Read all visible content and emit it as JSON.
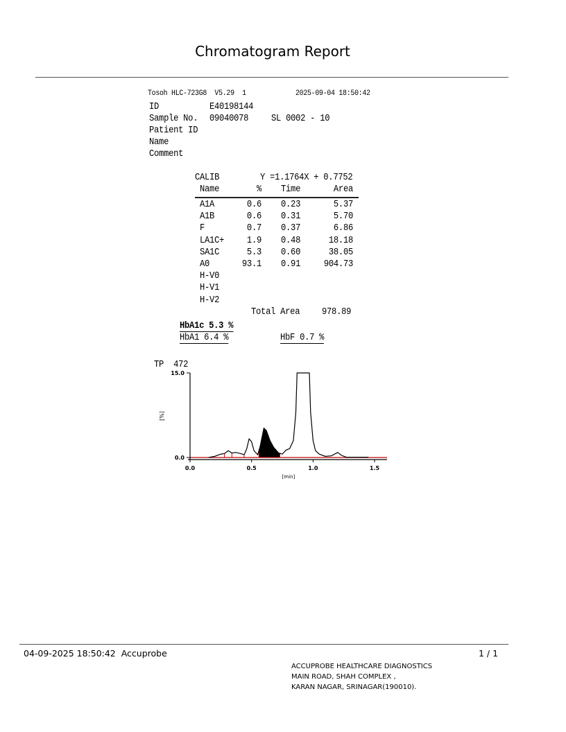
{
  "report": {
    "title": "Chromatogram Report"
  },
  "header": {
    "instrument": "Tosoh HLC-723G8  V5.29  1",
    "datetime": "2025-09-04 18:50:42",
    "id_label": "ID",
    "id_value": "E40198144",
    "sample_label": "Sample No.",
    "sample_value": "09040078",
    "sample_position": "SL 0002 - 10",
    "patient_id_label": "Patient ID",
    "name_label": "Name",
    "comment_label": "Comment"
  },
  "calib": {
    "label": "CALIB",
    "equation": "Y =1.1764X + 0.7752"
  },
  "table": {
    "columns": [
      "Name",
      "%",
      "Time",
      "Area"
    ],
    "rows": [
      [
        "A1A",
        "0.6",
        "0.23",
        "5.37"
      ],
      [
        "A1B",
        "0.6",
        "0.31",
        "5.70"
      ],
      [
        "F",
        "0.7",
        "0.37",
        "6.86"
      ],
      [
        "LA1C+",
        "1.9",
        "0.48",
        "18.18"
      ],
      [
        "SA1C",
        "5.3",
        "0.60",
        "38.05"
      ],
      [
        "A0",
        "93.1",
        "0.91",
        "904.73"
      ],
      [
        "H-V0",
        "",
        "",
        ""
      ],
      [
        "H-V1",
        "",
        "",
        ""
      ],
      [
        "H-V2",
        "",
        "",
        ""
      ]
    ],
    "total_label": "Total Area",
    "total_value": "978.89"
  },
  "results": {
    "hba1c": "HbA1c 5.3 %",
    "hba1": "HbA1 6.4 %",
    "hbf": "HbF 0.7 %"
  },
  "chart_data": {
    "type": "line",
    "tp_label": "TP  472",
    "xlabel": "[min]",
    "ylabel": "[%]",
    "xlim": [
      0,
      1.6
    ],
    "ylim": [
      0,
      15
    ],
    "xticks": [
      "0.0",
      "0.5",
      "1.0",
      "1.5"
    ],
    "yticks": [
      "0.0",
      "15.0"
    ],
    "trace_color": "#000000",
    "baseline_color": "#c00000",
    "series": [
      {
        "x": [
          0.15,
          0.2,
          0.25,
          0.28,
          0.31,
          0.34,
          0.37,
          0.41,
          0.44,
          0.46,
          0.48,
          0.5,
          0.52,
          0.55,
          0.57,
          0.6,
          0.62,
          0.65,
          0.68,
          0.72,
          0.75,
          0.78,
          0.81,
          0.84,
          0.86,
          0.87,
          0.97,
          0.98,
          1.0,
          1.02,
          1.05,
          1.1,
          1.15,
          1.2,
          1.23,
          1.27,
          1.45
        ],
        "y": [
          0,
          0.2,
          0.6,
          0.7,
          1.2,
          0.8,
          0.9,
          0.7,
          0.5,
          1.5,
          3.3,
          2.8,
          1.2,
          0.5,
          2.0,
          5.2,
          4.8,
          3.0,
          1.8,
          0.8,
          0.6,
          1.3,
          1.6,
          3.0,
          8,
          15,
          15,
          8,
          3,
          1.2,
          0.6,
          0.2,
          0.3,
          0.9,
          0.4,
          0.05,
          0.05
        ]
      }
    ],
    "filled_peak": {
      "name": "SA1C",
      "x_range": [
        0.56,
        0.73
      ]
    },
    "peak_boundaries": [
      0.28,
      0.34,
      0.44,
      0.56,
      0.73
    ]
  },
  "footer": {
    "printed": "04-09-2025 18:50:42  Accuprobe",
    "page": "1 / 1",
    "address": [
      "ACCUPROBE HEALTHCARE DIAGNOSTICS",
      "MAIN ROAD, SHAH COMPLEX ,",
      "KARAN NAGAR, SRINAGAR(190010)."
    ]
  }
}
